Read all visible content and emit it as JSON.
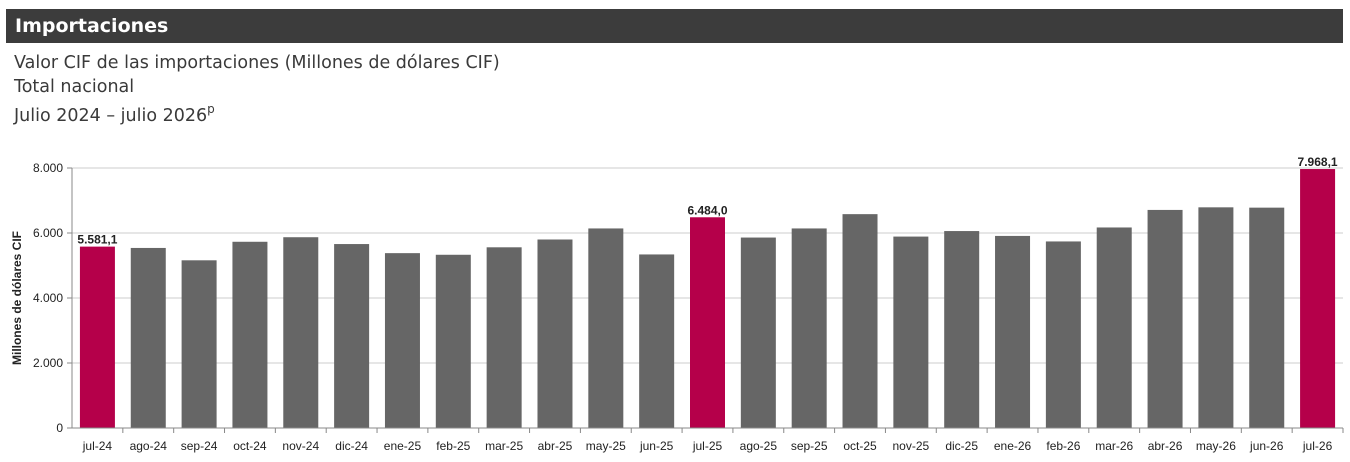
{
  "header": {
    "title": "Importaciones"
  },
  "subtitle": {
    "line1": "Valor CIF de las importaciones (Millones de dólares CIF)",
    "line2": "Total nacional",
    "line3": "Julio 2024 – julio 2026",
    "line3_sup": "p"
  },
  "colors": {
    "header_bg": "#3c3c3c",
    "bar": "#666666",
    "highlight": "#b5004a",
    "grid": "#cccccc"
  },
  "chart_data": {
    "type": "bar",
    "ylabel": "Millones de dólares CIF",
    "ylim": [
      0,
      8000
    ],
    "yticks": [
      0,
      2000,
      4000,
      6000,
      8000
    ],
    "ytick_labels": [
      "0",
      "2.000",
      "4.000",
      "6.000",
      "8.000"
    ],
    "grid": true,
    "categories": [
      "jul-24",
      "ago-24",
      "sep-24",
      "oct-24",
      "nov-24",
      "dic-24",
      "ene-25",
      "feb-25",
      "mar-25",
      "abr-25",
      "may-25",
      "jun-25",
      "jul-25",
      "ago-25",
      "sep-25",
      "oct-25",
      "nov-25",
      "dic-25",
      "ene-26",
      "feb-26",
      "mar-26",
      "abr-26",
      "may-26",
      "jun-26",
      "jul-26"
    ],
    "values": [
      5581.1,
      5540,
      5160,
      5730,
      5870,
      5660,
      5380,
      5330,
      5560,
      5800,
      6140,
      5340,
      6484.0,
      5860,
      6140,
      6580,
      5890,
      6060,
      5910,
      5740,
      6170,
      6710,
      6790,
      6780,
      7968.1
    ],
    "highlighted": [
      0,
      12,
      24
    ],
    "data_labels": {
      "0": "5.581,1",
      "12": "6.484,0",
      "24": "7.968,1"
    }
  }
}
